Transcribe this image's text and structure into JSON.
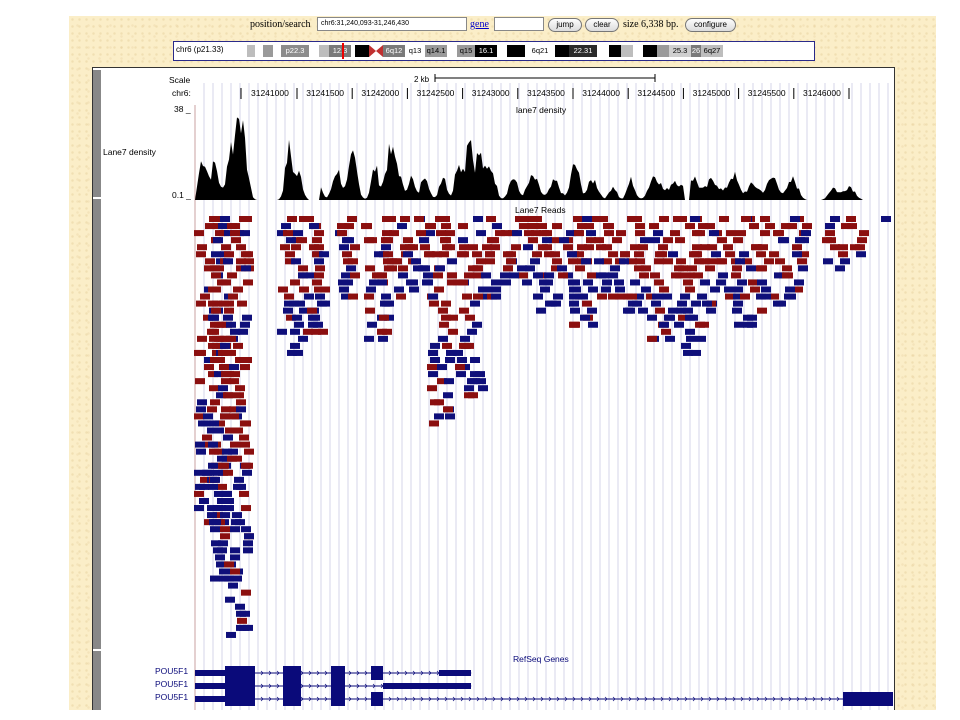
{
  "navbar": {
    "position_label": "position/search",
    "position_value": "chr6:31,240,093-31,246,430",
    "gene_link": "gene",
    "gene_value": "",
    "jump_label": "jump",
    "clear_label": "clear",
    "size_text": "size 6,338 bp.",
    "configure_label": "configure"
  },
  "ideogram": {
    "label": "chr6 (p21.33)",
    "bands": [
      {
        "name": "",
        "color": "#ffffff"
      },
      {
        "name": "",
        "color": "#bdbdbd"
      },
      {
        "name": "",
        "color": "#ffffff"
      },
      {
        "name": "",
        "color": "#9a9a9a"
      },
      {
        "name": "",
        "color": "#ffffff"
      },
      {
        "name": "p22.3",
        "color": "#8c8c8c"
      },
      {
        "name": "",
        "color": "#ffffff"
      },
      {
        "name": "",
        "color": "#bdbdbd"
      },
      {
        "name": "12.3",
        "color": "#7a7a7a"
      },
      {
        "name": "",
        "color": "#ffffff"
      },
      {
        "name": "",
        "color": "#000000"
      },
      {
        "name": "",
        "color": "#c03030"
      },
      {
        "name": "6q12",
        "color": "#7a7a7a"
      },
      {
        "name": "q13",
        "color": "#ffffff"
      },
      {
        "name": "q14.1",
        "color": "#9a9a9a"
      },
      {
        "name": "",
        "color": "#ffffff"
      },
      {
        "name": "q15",
        "color": "#9a9a9a"
      },
      {
        "name": "16.1",
        "color": "#000000"
      },
      {
        "name": "",
        "color": "#ffffff"
      },
      {
        "name": "",
        "color": "#000000"
      },
      {
        "name": "6q21",
        "color": "#ffffff"
      },
      {
        "name": "",
        "color": "#000000"
      },
      {
        "name": "22.31",
        "color": "#2a2a2a"
      },
      {
        "name": "",
        "color": "#ffffff"
      },
      {
        "name": "",
        "color": "#000000"
      },
      {
        "name": "",
        "color": "#bdbdbd"
      },
      {
        "name": "",
        "color": "#ffffff"
      },
      {
        "name": "",
        "color": "#000000"
      },
      {
        "name": "",
        "color": "#9a9a9a"
      },
      {
        "name": "25.3",
        "color": "#cfcfcf"
      },
      {
        "name": "26",
        "color": "#7a7a7a"
      },
      {
        "name": "6q27",
        "color": "#bdbdbd"
      }
    ]
  },
  "ruler": {
    "scale_label": "Scale",
    "chrom_label": "chr6:",
    "scale_bar_text": "2 kb",
    "positions": [
      "31241000",
      "31241500",
      "31242000",
      "31242500",
      "31243000",
      "31243500",
      "31244000",
      "31244500",
      "31245000",
      "31245500",
      "31246000"
    ]
  },
  "density_track": {
    "title": "lane7 density",
    "side_label": "Lane7 density",
    "ymax": "38 _",
    "ymin": "0.1 _"
  },
  "reads_track": {
    "title": "Lane7 Reads"
  },
  "refseq_track": {
    "title": "RefSeq Genes",
    "genes": [
      "POU5F1",
      "POU5F1",
      "POU5F1"
    ]
  },
  "colors": {
    "forward_read": "#8b0f0f",
    "reverse_read": "#0f0f7a",
    "gene": "#0a0a7a",
    "nav_link": "#0000cc"
  }
}
